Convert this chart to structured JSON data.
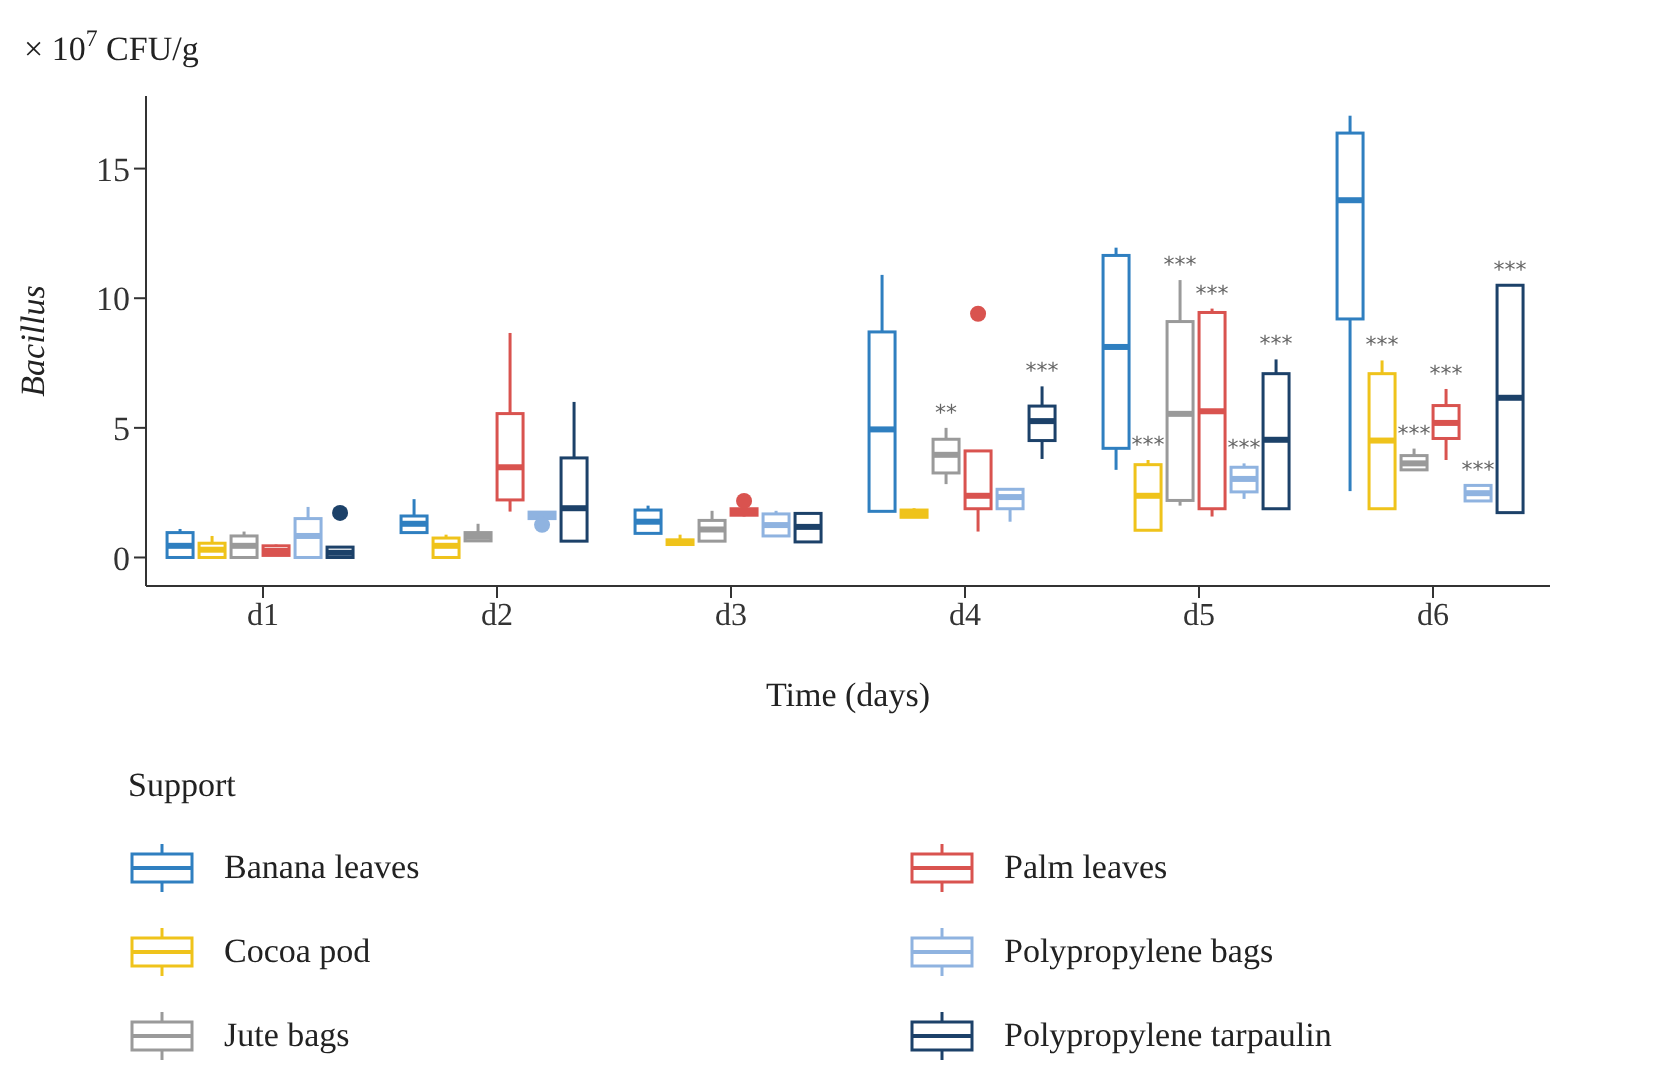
{
  "chart_data": {
    "type": "box",
    "xlabel": "Time (days)",
    "ylabel": "Bacillus",
    "legend_title": "Support",
    "legend": "bottom",
    "grid": false,
    "categories": [
      "d1",
      "d2",
      "d3",
      "d4",
      "d5",
      "d6"
    ],
    "ylim": [
      -1.1,
      17.8
    ],
    "yticks": [
      0,
      5,
      10,
      15
    ],
    "annotations": [
      "× 10$^{7}$ CFU/g",
      "**",
      "***",
      "***",
      "***",
      "***",
      "***",
      "***",
      "***",
      "***",
      "***",
      "***",
      "***"
    ],
    "series": [
      {
        "name": "Banana leaves",
        "color": "#2f7fc0",
        "boxes": [
          {
            "low": 0,
            "q1": 0,
            "median": 0.45,
            "q3": 0.96,
            "high": 1.1
          },
          {
            "low": 0.96,
            "q1": 0.96,
            "median": 1.3,
            "q3": 1.6,
            "high": 2.25
          },
          {
            "low": 0.93,
            "q1": 0.93,
            "median": 1.38,
            "q3": 1.83,
            "high": 2.0
          },
          {
            "low": 1.78,
            "q1": 1.78,
            "median": 4.94,
            "q3": 8.7,
            "high": 10.9
          },
          {
            "low": 3.38,
            "q1": 4.21,
            "median": 8.12,
            "q3": 11.65,
            "high": 11.95
          },
          {
            "low": 2.56,
            "q1": 9.2,
            "median": 13.78,
            "q3": 16.37,
            "high": 17.04
          }
        ]
      },
      {
        "name": "Cocoa pod",
        "color": "#efc31b",
        "boxes": [
          {
            "low": 0,
            "q1": 0,
            "median": 0.3,
            "q3": 0.55,
            "high": 0.83
          },
          {
            "low": 0,
            "q1": 0,
            "median": 0.45,
            "q3": 0.75,
            "high": 0.88
          },
          {
            "low": 0.5,
            "q1": 0.5,
            "median": 0.6,
            "q3": 0.68,
            "high": 0.88
          },
          {
            "low": 1.55,
            "q1": 1.55,
            "median": 1.7,
            "q3": 1.83,
            "high": 1.9
          },
          {
            "low": 1.05,
            "q1": 1.05,
            "median": 2.38,
            "q3": 3.58,
            "high": 3.76
          },
          {
            "low": 1.88,
            "q1": 1.88,
            "median": 4.51,
            "q3": 7.09,
            "high": 7.6
          }
        ]
      },
      {
        "name": "Jute bags",
        "color": "#9a9a9a",
        "boxes": [
          {
            "low": 0,
            "q1": 0,
            "median": 0.45,
            "q3": 0.83,
            "high": 1.0
          },
          {
            "low": 0.64,
            "q1": 0.64,
            "median": 0.8,
            "q3": 0.96,
            "high": 1.3
          },
          {
            "low": 0.63,
            "q1": 0.63,
            "median": 1.08,
            "q3": 1.43,
            "high": 1.8
          },
          {
            "low": 2.83,
            "q1": 3.26,
            "median": 3.96,
            "q3": 4.56,
            "high": 5.0
          },
          {
            "low": 2.0,
            "q1": 2.2,
            "median": 5.54,
            "q3": 9.1,
            "high": 10.7
          },
          {
            "low": 3.38,
            "q1": 3.38,
            "median": 3.63,
            "q3": 3.93,
            "high": 4.2
          }
        ]
      },
      {
        "name": "Palm leaves",
        "color": "#d9534f",
        "boxes": [
          {
            "low": 0.08,
            "q1": 0.08,
            "median": 0.25,
            "q3": 0.45,
            "high": 0.5
          },
          {
            "low": 1.77,
            "q1": 2.22,
            "median": 3.48,
            "q3": 5.55,
            "high": 8.66
          },
          {
            "low": 1.58,
            "q1": 1.63,
            "median": 1.75,
            "q3": 1.88,
            "high": 1.9,
            "outliers": [
              2.18
            ]
          },
          {
            "low": 1.0,
            "q1": 1.88,
            "median": 2.38,
            "q3": 4.11,
            "high": 4.11,
            "outliers": [
              9.4
            ]
          },
          {
            "low": 1.58,
            "q1": 1.88,
            "median": 5.64,
            "q3": 9.45,
            "high": 9.6
          },
          {
            "low": 3.76,
            "q1": 4.59,
            "median": 5.19,
            "q3": 5.86,
            "high": 6.5
          }
        ]
      },
      {
        "name": "Polypropylene bags",
        "color": "#8fb3e0",
        "boxes": [
          {
            "low": 0,
            "q1": 0,
            "median": 0.83,
            "q3": 1.5,
            "high": 1.95
          },
          {
            "low": 1.5,
            "q1": 1.5,
            "median": 1.6,
            "q3": 1.75,
            "high": 1.75,
            "outliers": [
              1.26
            ]
          },
          {
            "low": 0.83,
            "q1": 0.83,
            "median": 1.25,
            "q3": 1.68,
            "high": 1.8
          },
          {
            "low": 1.38,
            "q1": 1.88,
            "median": 2.33,
            "q3": 2.63,
            "high": 2.63
          },
          {
            "low": 2.26,
            "q1": 2.53,
            "median": 3.03,
            "q3": 3.48,
            "high": 3.63
          },
          {
            "low": 2.18,
            "q1": 2.18,
            "median": 2.48,
            "q3": 2.78,
            "high": 2.8
          }
        ]
      },
      {
        "name": "Polypropylene tarpaulin",
        "color": "#1c4169",
        "boxes": [
          {
            "low": 0,
            "q1": 0,
            "median": 0.18,
            "q3": 0.4,
            "high": 0.4,
            "outliers": [
              1.72
            ]
          },
          {
            "low": 0.63,
            "q1": 0.63,
            "median": 1.9,
            "q3": 3.84,
            "high": 6.0
          },
          {
            "low": 0.6,
            "q1": 0.6,
            "median": 1.18,
            "q3": 1.7,
            "high": 1.7
          },
          {
            "low": 3.8,
            "q1": 4.51,
            "median": 5.26,
            "q3": 5.84,
            "high": 6.6
          },
          {
            "low": 1.88,
            "q1": 1.88,
            "median": 4.54,
            "q3": 7.09,
            "high": 7.64
          },
          {
            "low": 1.73,
            "q1": 1.73,
            "median": 6.16,
            "q3": 10.5,
            "high": 10.5
          }
        ]
      }
    ]
  }
}
